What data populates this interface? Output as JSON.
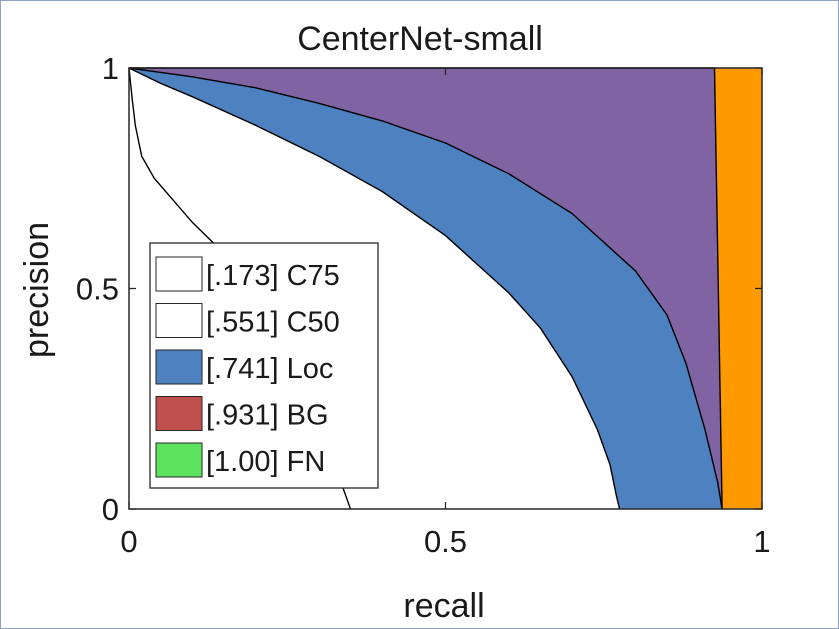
{
  "chart_data": {
    "type": "area",
    "title": "CenterNet-small",
    "xlabel": "recall",
    "ylabel": "precision",
    "xlim": [
      0,
      1
    ],
    "ylim": [
      0,
      1
    ],
    "xticks": [
      "0",
      "0.5",
      "1"
    ],
    "yticks": [
      "0",
      "0.5",
      "1"
    ],
    "grid": false,
    "legend_position": "bottom-left",
    "colors": {
      "C75": "#ffffff",
      "C50": "#ffffff",
      "Loc": "#4d81bf",
      "Sim": "#8063a3",
      "BG": "#c0504d",
      "FN": "#ff9900",
      "FN_legend": "#5ee35e",
      "frame_border": "#8ea1c0"
    },
    "legend": [
      {
        "key": "C75",
        "label": "[.173] C75"
      },
      {
        "key": "C50",
        "label": "[.551] C50"
      },
      {
        "key": "Loc",
        "label": "[.741] Loc"
      },
      {
        "key": "BG",
        "label": "[.931] BG"
      },
      {
        "key": "FN_legend",
        "label": "[1.00] FN"
      }
    ],
    "series": [
      {
        "key": "C75",
        "x": [
          0,
          0.005,
          0.01,
          0.02,
          0.04,
          0.07,
          0.1,
          0.15,
          0.2,
          0.25,
          0.3,
          0.33,
          0.35
        ],
        "y": [
          1.0,
          0.93,
          0.87,
          0.8,
          0.75,
          0.7,
          0.65,
          0.58,
          0.5,
          0.38,
          0.22,
          0.08,
          0.0
        ]
      },
      {
        "key": "C50",
        "x": [
          0,
          0.05,
          0.1,
          0.2,
          0.3,
          0.4,
          0.5,
          0.6,
          0.65,
          0.7,
          0.74,
          0.76,
          0.77,
          0.775
        ],
        "y": [
          1.0,
          0.965,
          0.935,
          0.87,
          0.8,
          0.72,
          0.62,
          0.49,
          0.41,
          0.3,
          0.18,
          0.1,
          0.03,
          0.0
        ]
      },
      {
        "key": "Loc",
        "x": [
          0,
          0.05,
          0.1,
          0.2,
          0.3,
          0.4,
          0.5,
          0.6,
          0.7,
          0.8,
          0.85,
          0.88,
          0.91,
          0.93,
          0.937
        ],
        "y": [
          1.0,
          0.99,
          0.98,
          0.955,
          0.92,
          0.88,
          0.83,
          0.76,
          0.67,
          0.54,
          0.44,
          0.33,
          0.18,
          0.06,
          0.0
        ]
      },
      {
        "key": "Sim",
        "x": [
          0,
          0.925,
          0.937
        ],
        "y": [
          1.0,
          1.0,
          0.0
        ]
      }
    ]
  }
}
